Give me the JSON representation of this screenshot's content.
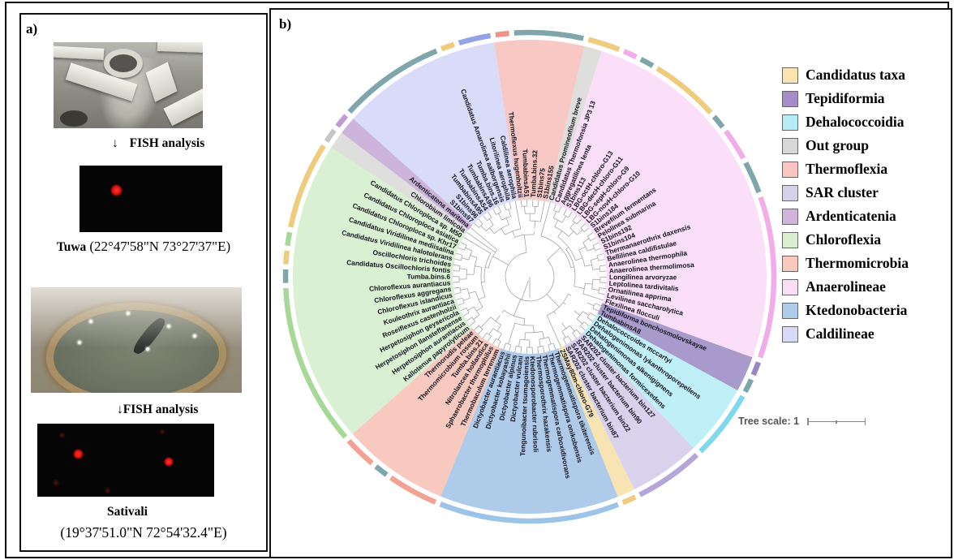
{
  "panel_a": {
    "label": "a)",
    "site1": {
      "arrow": "↓",
      "fish_label": "FISH analysis",
      "name": "Tuwa",
      "coordinates": "(22°47'58\"N 73°27'37\"E)"
    },
    "site2": {
      "arrow": "↓",
      "fish_label": "FISH analysis",
      "name": "Sativali",
      "coordinates": "(19°37'51.0\"N 72°54'32.4\"E)"
    }
  },
  "panel_b": {
    "label": "b)",
    "tree_scale_label": "Tree scale: 1",
    "legend": [
      {
        "label": "Candidatus taxa",
        "color": "#F9E4B0"
      },
      {
        "label": "Tepidiformia",
        "color": "#A48DC8"
      },
      {
        "label": "Dehalococcoidia",
        "color": "#B5ECF8"
      },
      {
        "label": "Out group",
        "color": "#D8D8D8"
      },
      {
        "label": "Thermoflexia",
        "color": "#F9C4C1"
      },
      {
        "label": "SAR cluster",
        "color": "#D6D0EA"
      },
      {
        "label": "Ardenticatenia",
        "color": "#D0B4DC"
      },
      {
        "label": "Chloroflexia",
        "color": "#D8EFD2"
      },
      {
        "label": "Thermomicrobia",
        "color": "#F9C9BE"
      },
      {
        "label": "Anaerolineae",
        "color": "#FADEF6"
      },
      {
        "label": "Ktedonobacteria",
        "color": "#AECBE9"
      },
      {
        "label": "Caldilineae",
        "color": "#D6DAF7"
      }
    ],
    "tree": {
      "start_angle_deg": 15.5,
      "rim_teal": "#7FA6AA",
      "rim_cream": "#EFCB7E",
      "sectors": [
        {
          "name": "Out group",
          "color": "#DEDEDC",
          "rim": "#C6C6C6",
          "leaves": [
            "Candidatus Promineofilum breve"
          ]
        },
        {
          "name": "Anaerolineae",
          "color": "#FBDFF8",
          "rim": "#F2ACEA",
          "leaves": [
            "Candidatus Thermofonsia JP3 13",
            "Aggregatilinea lenta",
            "S1bins113",
            "LBG-octH-chloro-G13",
            "LBG-decH-chloro-G11",
            "LBG-sepH-chloro-G9",
            "LBG-novH-chloro-G10",
            "S1bins184",
            "Brevefilum fermentans",
            "Pelolinea submarina",
            "S1bins192",
            "S1bins104",
            "Thermanaerothrix daxensis",
            "Bellilinea caldifistulae",
            "Anaerolinea thermophila",
            "Anaerolinea thermolimosa",
            "Longilinea arvoryzae",
            "Leptolinea tardivitalis",
            "Ornatilinea apprima",
            "Levilinea saccharolytica",
            "Flexilinea flocculi"
          ]
        },
        {
          "name": "Tepidiformia",
          "color": "#A89BCB",
          "rim": "#9A86C2",
          "leaves": [
            "Tepidiforma bonchosmolovskayae",
            "TumbabinsA8"
          ]
        },
        {
          "name": "Dehalococcoidia",
          "color": "#BFF0F8",
          "rim": "#7FD8EC",
          "leaves": [
            "Dehalococcoides mccartyi",
            "Dehalogenimonas lykanthroporepellens",
            "Dehalogenimonas alkenigignens",
            "Dehalogenimonas formicexedens"
          ]
        },
        {
          "name": "SAR cluster",
          "color": "#D8D2ED",
          "rim": "#B4A6D8",
          "leaves": [
            "SAR202 cluster bacterium bin127",
            "SAR202 cluster bacterium bin90",
            "SAR202 cluster bacterium bin22",
            "SAR202 cluster bacterium bin87"
          ]
        },
        {
          "name": "Candidatus taxa",
          "color": "#F8E3B2",
          "rim": "#EFCB7E",
          "leaves": [
            "ZSMay80m-chloro-G79"
          ]
        },
        {
          "name": "Ktedonobacteria",
          "color": "#AECBE9",
          "rim": "#9CC3E8",
          "leaves": [
            "Thermogemmatispora tikiterensis",
            "Thermogemmatispora onikobensis",
            "Thermogemmatispora carboxidivorans",
            "Thermosporothrix hazakensis",
            "Ktedonosporobacter rubrisoli",
            "Tengunoibacter tsumagoiensis",
            "Dictyobacter vulcani",
            "Dictyobacter alpinus",
            "Dictyobacter kobayashii",
            "Dictyobacter aurantiacus"
          ]
        },
        {
          "name": "Thermomicrobia",
          "color": "#F8C9BE",
          "rim": "#F2A193",
          "leaves": [
            "Thermobaculum terrenum",
            "Sphaerobacter thermophilus",
            "Nitrolancea hollandica",
            "Tumba.bins.21",
            "Thermomicrobium roseum",
            "Thermorudis peleae"
          ]
        },
        {
          "name": "Chloroflexia",
          "color": "#D9F0D3",
          "rim": "#A6D898",
          "leaves": [
            "Kallotenue papyrolyticum",
            "Herpetosiphon aurantiacus",
            "Herpetosiphon llansteffanense",
            "Herpetosiphon geysericola",
            "Roseiflexus castenholzii",
            "Kouleothrix aurantiaca",
            "Chloroflexus islandicus",
            "Chloroflexus aggregans",
            "Chloroflexus aurantiacus",
            "Tumba.bins.6",
            "Candidatus Oscillochloris fontis",
            "Oscillochloris trichoides",
            "Candidatus Viridilinea halotolerans",
            "Candidatus Viridilinea mediisalina",
            "Candidatus Chloroploca sp. Khr17",
            "Candidatus Chloroploca asiatica",
            "Candidatus Chloroploca sp. M50"
          ]
        },
        {
          "name": "Out group",
          "color": "#DEDEDC",
          "rim": "#C6C6C6",
          "leaves": [
            "Chlorobium limicola"
          ]
        },
        {
          "name": "Ardenticatenia",
          "color": "#CDB4DB",
          "rim": "#C09BD2",
          "leaves": [
            "Ardenticatena maritima"
          ]
        },
        {
          "name": "Caldilineae",
          "color": "#D8DCF8",
          "rim": "#93A3E6",
          "leaves": [
            "S1bins97",
            "S1bins96",
            "TumbabinsA95",
            "TumbabinsA54",
            "TumbabinsA96",
            "Tumba.bins.16",
            "Candidatus Amarolinea aalborgensis",
            "Litorilinea aerophila",
            "Caldilinea aerophila"
          ]
        },
        {
          "name": "Thermoflexia",
          "color": "#F8C8C5",
          "rim": "#F2908A",
          "leaves": [
            "Thermoflexus hugenholtzii",
            "TumbabinsA51",
            "Tumba.bins.32",
            "S1bins75",
            "S1bins155"
          ]
        }
      ]
    }
  }
}
